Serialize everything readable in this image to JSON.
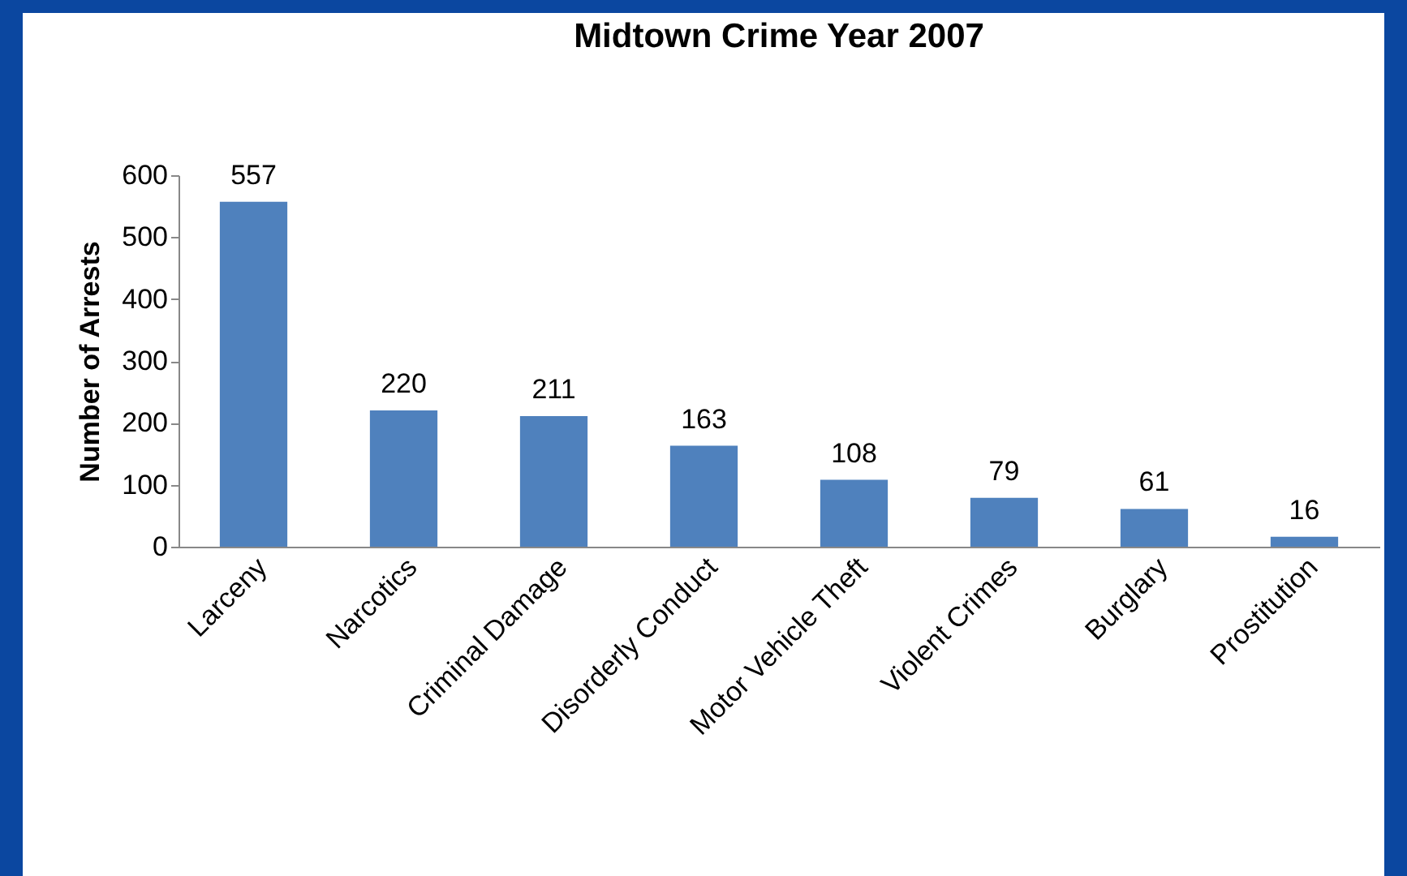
{
  "chart_data": {
    "type": "bar",
    "title": "Midtown Crime Year 2007",
    "ylabel": "Number of Arrests",
    "categories": [
      "Larceny",
      "Narcotics",
      "Criminal Damage",
      "Disorderly Conduct",
      "Motor Vehicle Theft",
      "Violent Crimes",
      "Burglary",
      "Prostitution"
    ],
    "values": [
      557,
      220,
      211,
      163,
      108,
      79,
      61,
      16
    ],
    "color": "#4f81bd",
    "ylim": [
      0,
      600
    ],
    "yticks": [
      0,
      100,
      200,
      300,
      400,
      500,
      600
    ],
    "grid": false,
    "data_labels": true
  }
}
